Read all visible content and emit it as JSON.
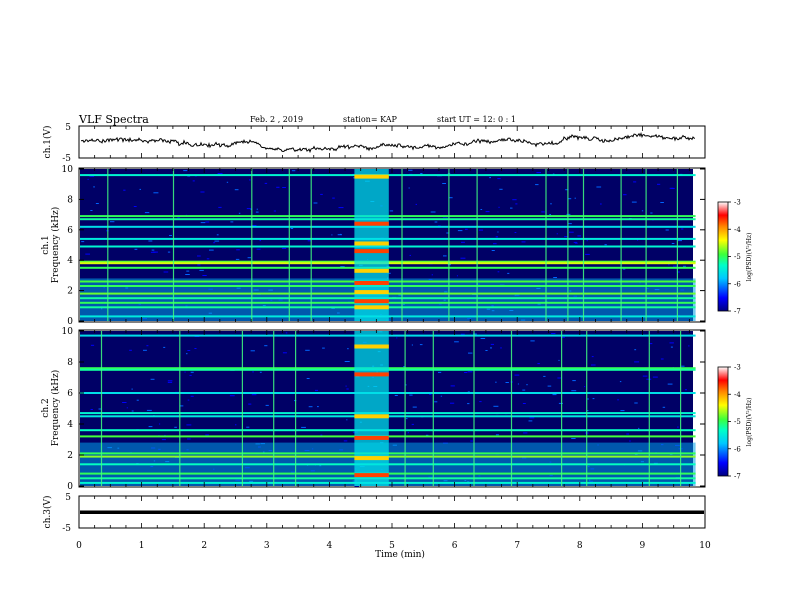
{
  "header": {
    "title": "VLF Spectra",
    "date": "Feb. 2 , 2019",
    "station": "station= KAP",
    "start": "start UT =  12: 0 : 1"
  },
  "panels": {
    "ch1_voltage": {
      "ylabel": "ch.1(V)",
      "ticks": [
        "5",
        "-5"
      ]
    },
    "ch1_spectrum": {
      "ylabel_line1": "ch.1",
      "ylabel_line2": "Frequency (kHz)",
      "ticks": [
        "0",
        "2",
        "4",
        "6",
        "8",
        "10"
      ]
    },
    "ch2_spectrum": {
      "ylabel_line1": "ch.2",
      "ylabel_line2": "Frequency (kHz)",
      "ticks": [
        "0",
        "2",
        "4",
        "6",
        "8",
        "10"
      ]
    },
    "ch3_voltage": {
      "ylabel": "ch.3(V)",
      "ticks": [
        "5",
        "-5"
      ]
    }
  },
  "x_axis": {
    "label": "Time (min)",
    "ticks": [
      "0",
      "1",
      "2",
      "3",
      "4",
      "5",
      "6",
      "7",
      "8",
      "9",
      "10"
    ]
  },
  "colorbar": {
    "label": "log(PSD)(V²/Hz)",
    "ticks": [
      "-3",
      "-4",
      "-5",
      "-6",
      "-7"
    ]
  },
  "chart_data": {
    "type": "heatmap",
    "title": "VLF Spectra",
    "xlabel": "Time (min)",
    "xlim": [
      0,
      10
    ],
    "x_record_end_min": 9.85,
    "channels": [
      {
        "name": "ch.1",
        "ylabel": "Frequency (kHz)",
        "ylim": [
          0,
          10
        ],
        "background_log_psd": -7,
        "horizontal_bands": [
          {
            "freq_khz": 9.6,
            "log_psd": -5.4
          },
          {
            "freq_khz": 6.9,
            "log_psd": -5.0
          },
          {
            "freq_khz": 6.7,
            "log_psd": -5.2
          },
          {
            "freq_khz": 6.2,
            "log_psd": -5.6
          },
          {
            "freq_khz": 5.4,
            "log_psd": -5.5
          },
          {
            "freq_khz": 4.9,
            "log_psd": -5.4
          },
          {
            "freq_khz": 3.9,
            "log_psd": -4.8
          },
          {
            "freq_khz": 3.8,
            "log_psd": -4.5
          },
          {
            "freq_khz": 3.5,
            "log_psd": -5.0
          },
          {
            "freq_khz": 2.6,
            "log_psd": -4.9
          },
          {
            "freq_khz": 2.3,
            "log_psd": -5.0
          },
          {
            "freq_khz": 1.8,
            "log_psd": -4.8
          },
          {
            "freq_khz": 1.5,
            "log_psd": -5.2
          },
          {
            "freq_khz": 1.2,
            "log_psd": -5.0
          },
          {
            "freq_khz": 0.9,
            "log_psd": -5.2
          },
          {
            "freq_khz": 0.3,
            "log_psd": -5.5
          }
        ],
        "burst": {
          "t_start_min": 4.4,
          "t_end_min": 4.95,
          "log_psd": -5.6,
          "strong_lines_khz": [
            9.5,
            6.4,
            5.1,
            4.6,
            3.3,
            2.5,
            1.9,
            1.3,
            0.9
          ]
        },
        "vertical_spikes_min": [
          0.45,
          1.5,
          2.75,
          3.35,
          3.7,
          5.15,
          5.9,
          6.35,
          7.45,
          7.8,
          8.05,
          8.65,
          9.05,
          9.55
        ]
      },
      {
        "name": "ch.2",
        "ylabel": "Frequency (kHz)",
        "ylim": [
          0,
          10
        ],
        "background_log_psd": -7,
        "horizontal_bands": [
          {
            "freq_khz": 9.7,
            "log_psd": -5.6
          },
          {
            "freq_khz": 7.6,
            "log_psd": -5.0
          },
          {
            "freq_khz": 7.5,
            "log_psd": -5.2
          },
          {
            "freq_khz": 6.0,
            "log_psd": -5.6
          },
          {
            "freq_khz": 4.7,
            "log_psd": -5.4
          },
          {
            "freq_khz": 4.5,
            "log_psd": -5.5
          },
          {
            "freq_khz": 3.6,
            "log_psd": -5.3
          },
          {
            "freq_khz": 3.2,
            "log_psd": -4.9
          },
          {
            "freq_khz": 2.1,
            "log_psd": -5.0
          },
          {
            "freq_khz": 1.9,
            "log_psd": -4.7
          },
          {
            "freq_khz": 1.4,
            "log_psd": -5.3
          },
          {
            "freq_khz": 0.8,
            "log_psd": -5.0
          },
          {
            "freq_khz": 0.5,
            "log_psd": -5.2
          },
          {
            "freq_khz": 0.2,
            "log_psd": -5.4
          }
        ],
        "burst": {
          "t_start_min": 4.4,
          "t_end_min": 4.95,
          "log_psd": -5.6,
          "strong_lines_khz": [
            9.0,
            7.2,
            4.5,
            3.1,
            1.8,
            0.7
          ]
        },
        "vertical_spikes_min": [
          0.35,
          1.6,
          2.6,
          3.1,
          3.45,
          5.2,
          5.65,
          6.3,
          6.9,
          7.7,
          8.1,
          9.1,
          9.6
        ]
      }
    ],
    "voltage_traces": [
      {
        "name": "ch.1(V)",
        "ylim": [
          -5,
          5
        ],
        "description": "noisy trace around 0 V"
      },
      {
        "name": "ch.3(V)",
        "ylim": [
          -5,
          5
        ],
        "constant_value_v": 0
      }
    ],
    "colorbar": {
      "label": "log(PSD)(V²/Hz)",
      "range": [
        -7,
        -3
      ]
    }
  }
}
